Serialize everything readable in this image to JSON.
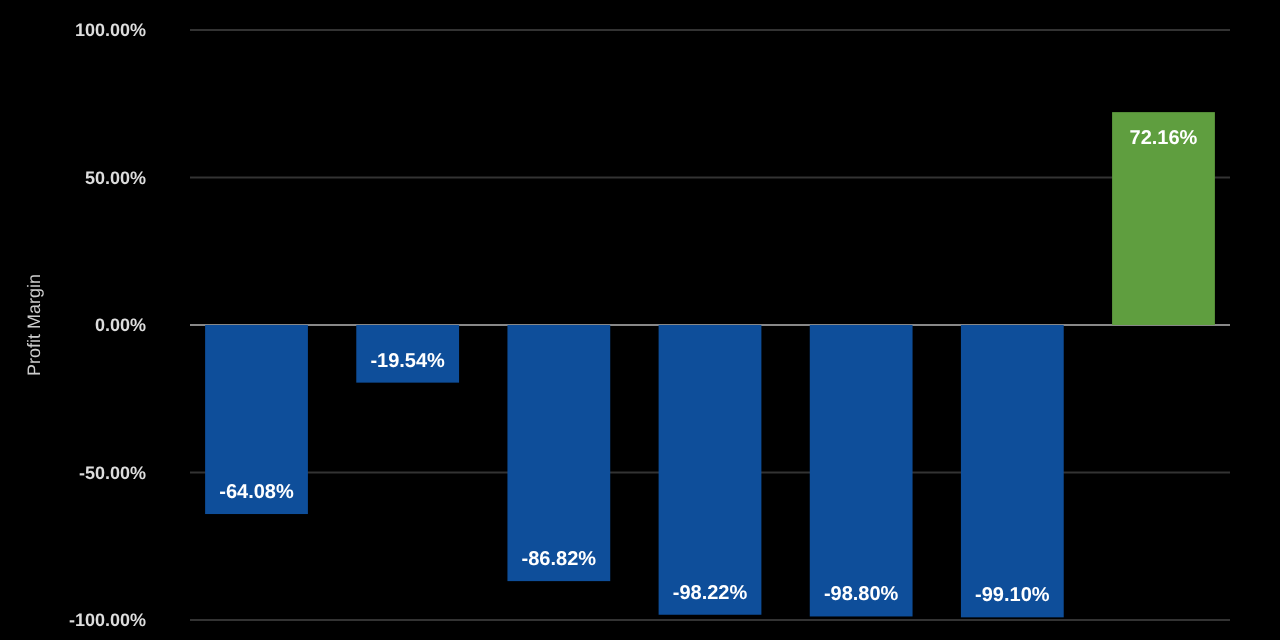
{
  "chart_data": {
    "type": "bar",
    "ylabel": "Profit Margin",
    "categories": [
      null,
      null,
      null,
      null,
      null,
      null,
      null
    ],
    "values": [
      -64.08,
      -19.54,
      -86.82,
      -98.22,
      -98.8,
      -99.1,
      72.16
    ],
    "colors": [
      "#0e4e9a",
      "#0e4e9a",
      "#0e4e9a",
      "#0e4e9a",
      "#0e4e9a",
      "#0e4e9a",
      "#5f9e3f"
    ],
    "value_labels": [
      "-64.08%",
      "-19.54%",
      "-86.82%",
      "-98.22%",
      "-98.80%",
      "-99.10%",
      "72.16%"
    ],
    "ylim": [
      -100,
      100
    ],
    "yticks": [
      {
        "value": -100,
        "label": "-100.00%"
      },
      {
        "value": -50,
        "label": "-50.00%"
      },
      {
        "value": 0,
        "label": "0.00%"
      },
      {
        "value": 50,
        "label": "50.00%"
      },
      {
        "value": 100,
        "label": "100.00%"
      }
    ],
    "grid": "y"
  }
}
